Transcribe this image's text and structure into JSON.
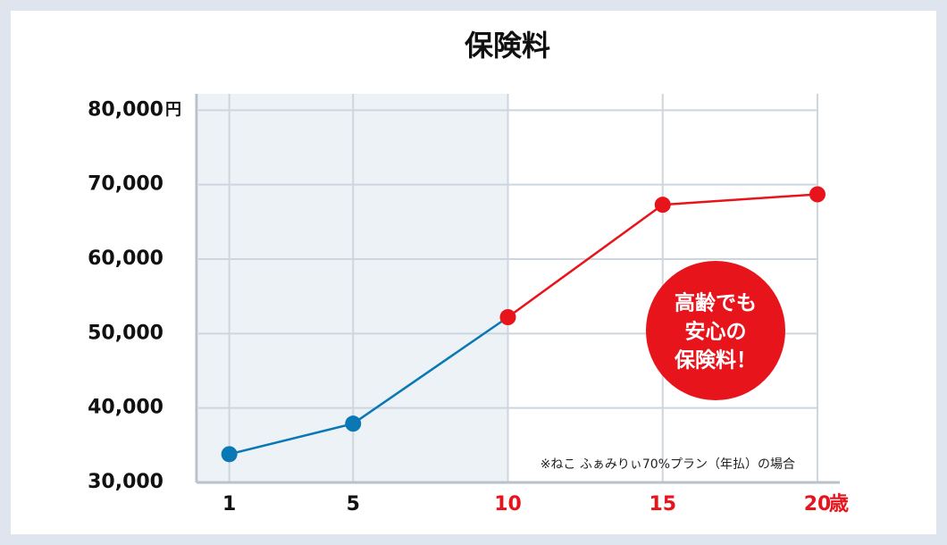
{
  "chart_data": {
    "type": "line",
    "title": "保険料",
    "x": [
      1,
      5,
      10,
      15,
      20
    ],
    "series": [
      {
        "values": [
          33800,
          37900,
          52200,
          67300,
          68700
        ],
        "color": "#0a78b4",
        "highlight_color": "#e8141c",
        "highlight_from": 10
      }
    ],
    "shade_to": 10,
    "xlim": [
      0,
      20
    ],
    "xticks": [
      1,
      5,
      10,
      15,
      20
    ],
    "x_unit": "歳",
    "ylim": [
      30000,
      82200
    ],
    "yticks": [
      {
        "value": 30000,
        "label": "30,000"
      },
      {
        "value": 40000,
        "label": "40,000"
      },
      {
        "value": 50000,
        "label": "50,000"
      },
      {
        "value": 60000,
        "label": "60,000"
      },
      {
        "value": 70000,
        "label": "70,000"
      },
      {
        "value": 80000,
        "label": "80,000"
      }
    ],
    "y_unit": "円",
    "grid": true,
    "badge": [
      "高齢でも",
      "安心の",
      "保険料！"
    ],
    "note": "※ねこ ふぁみりぃ70%プラン（年払）の場合"
  }
}
